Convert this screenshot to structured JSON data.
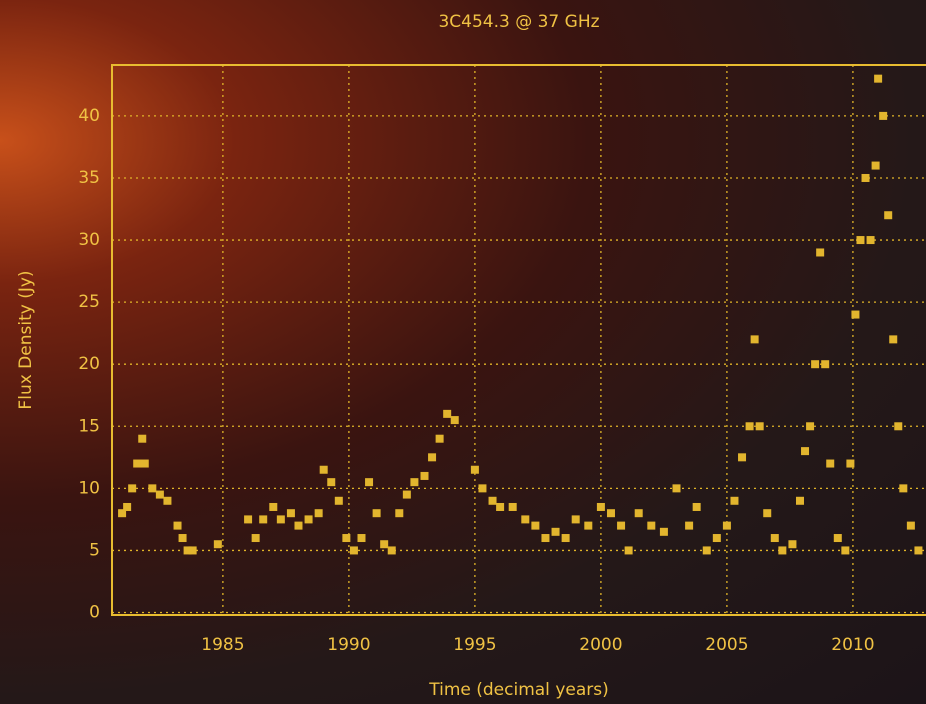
{
  "chart_data": {
    "type": "scatter",
    "title": "3C454.3 @ 37 GHz",
    "x_label": "Time (decimal years)",
    "y_label": "Flux Density (Jy)",
    "xlim": [
      1980.6,
      2012.9
    ],
    "ylim": [
      -0.2,
      44.1
    ],
    "xticks": [
      1985,
      1990,
      1995,
      2000,
      2005,
      2010
    ],
    "yticks": [
      0,
      5,
      10,
      15,
      20,
      25,
      30,
      35,
      40
    ],
    "grid": true,
    "series": [
      {
        "color": "#e2b52e",
        "x": [
          1981.0,
          1981.2,
          1981.4,
          1981.6,
          1981.8,
          1981.9,
          1982.2,
          1982.5,
          1982.8,
          1983.2,
          1983.4,
          1983.6,
          1983.8,
          1984.8,
          1986.0,
          1986.3,
          1986.6,
          1987.0,
          1987.3,
          1987.7,
          1988.0,
          1988.4,
          1988.8,
          1989.0,
          1989.3,
          1989.6,
          1989.9,
          1990.2,
          1990.5,
          1990.8,
          1991.1,
          1991.4,
          1991.7,
          1992.0,
          1992.3,
          1992.6,
          1993.0,
          1993.3,
          1993.6,
          1993.9,
          1994.2,
          1995.0,
          1995.3,
          1995.7,
          1996.0,
          1996.5,
          1997.0,
          1997.4,
          1997.8,
          1998.2,
          1998.6,
          1999.0,
          1999.5,
          2000.0,
          2000.4,
          2000.8,
          2001.1,
          2001.5,
          2002.0,
          2002.5,
          2003.0,
          2003.5,
          2003.8,
          2004.2,
          2004.6,
          2005.0,
          2005.3,
          2005.6,
          2005.9,
          2006.1,
          2006.3,
          2006.6,
          2006.9,
          2007.2,
          2007.6,
          2007.9,
          2008.1,
          2008.3,
          2008.5,
          2008.7,
          2008.9,
          2009.1,
          2009.4,
          2009.7,
          2009.9,
          2010.1,
          2010.3,
          2010.5,
          2010.7,
          2010.9,
          2011.0,
          2011.2,
          2011.4,
          2011.6,
          2011.8,
          2012.0,
          2012.3,
          2012.6
        ],
        "values": [
          8,
          8.5,
          10,
          12,
          14,
          12,
          10,
          9.5,
          9,
          7,
          6,
          5,
          5,
          5.5,
          7.5,
          6,
          7.5,
          8.5,
          7.5,
          8,
          7,
          7.5,
          8,
          11.5,
          10.5,
          9,
          6,
          5,
          6,
          10.5,
          8,
          5.5,
          5,
          8,
          9.5,
          10.5,
          11,
          12.5,
          14,
          16,
          15.5,
          11.5,
          10,
          9,
          8.5,
          8.5,
          7.5,
          7,
          6,
          6.5,
          6,
          7.5,
          7,
          8.5,
          8,
          7,
          5,
          8,
          7,
          6.5,
          10,
          7,
          8.5,
          5,
          6,
          7,
          9,
          12.5,
          15,
          22,
          15,
          8,
          6,
          5,
          5.5,
          9,
          13,
          15,
          20,
          29,
          20,
          12,
          6,
          5,
          12,
          24,
          30,
          35,
          30,
          36,
          43,
          40,
          32,
          22,
          15,
          10,
          7,
          5
        ]
      }
    ]
  }
}
